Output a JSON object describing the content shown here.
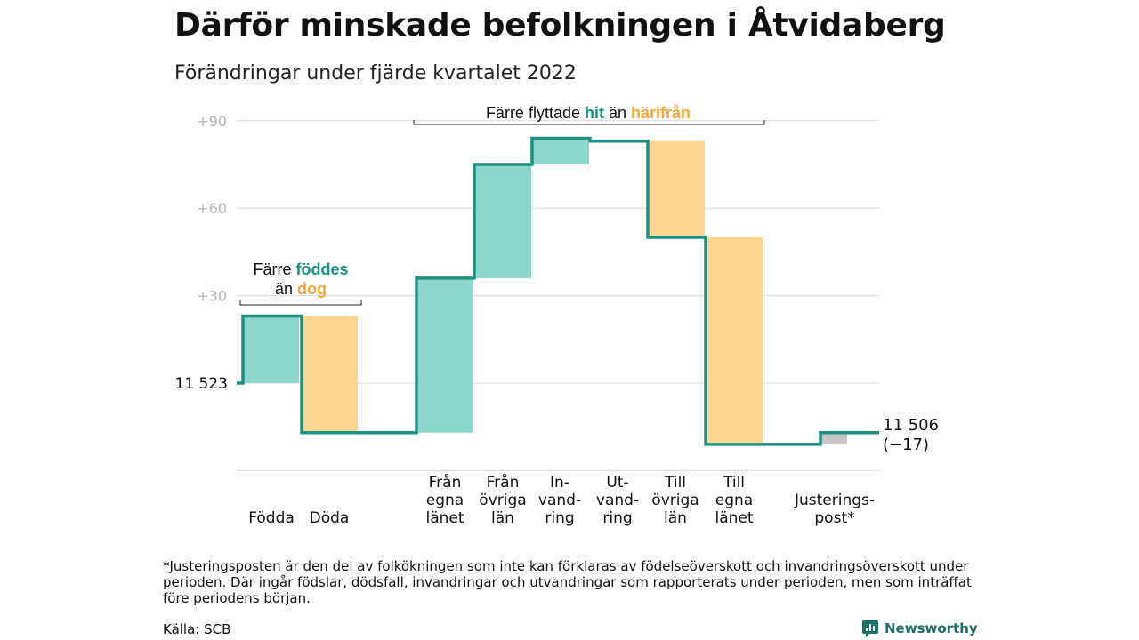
{
  "title": "Därför minskade befolkningen i Åtvidaberg",
  "subtitle": "Förändringar under fjärde kvartalet 2022",
  "footnote": "*Justeringsposten är den del av folkökningen som inte kan förklaras av födelseöverskott och invandringsöverskott under perioden. Där ingår födslar, dödsfall, invandringar och utvandringar som rapporterats under perioden, men som inträffat före periodens början.",
  "source": "Källa: SCB",
  "brand": "Newsworthy",
  "colors": {
    "increase": "#8dd6cb",
    "decrease": "#fcd690",
    "adjustment": "#c8c8c8",
    "line": "#1e9183",
    "teal_text": "#1e9183",
    "orange_text": "#f0a93a"
  },
  "chart_data": {
    "type": "waterfall",
    "start_value": 11523,
    "start_label": "11 523",
    "end_label": "11 506",
    "end_change_label": "(−17)",
    "y_ticks": [
      {
        "offset": 90,
        "label": "+90"
      },
      {
        "offset": 60,
        "label": "+60"
      },
      {
        "offset": 30,
        "label": "+30"
      },
      {
        "offset": 0,
        "label": ""
      },
      {
        "offset": -30,
        "label": ""
      }
    ],
    "ylim": [
      -40,
      95
    ],
    "steps": [
      {
        "label": [
          "",
          "",
          "Födda"
        ],
        "change": 23,
        "kind": "increase"
      },
      {
        "label": [
          "",
          "",
          "Döda"
        ],
        "change": -40,
        "kind": "decrease"
      },
      {
        "label": [
          "Från",
          "egna",
          "länet"
        ],
        "change": 53,
        "kind": "increase"
      },
      {
        "label": [
          "Från",
          "övriga",
          "län"
        ],
        "change": 39,
        "kind": "increase"
      },
      {
        "label": [
          "In-",
          "vand-",
          "ring"
        ],
        "change": 9,
        "kind": "increase"
      },
      {
        "label": [
          "Ut-",
          "vand-",
          "ring"
        ],
        "change": -1,
        "kind": "decrease_line_only"
      },
      {
        "label": [
          "Till",
          "övriga",
          "län"
        ],
        "change": -33,
        "kind": "decrease"
      },
      {
        "label": [
          "Till",
          "egna",
          "länet"
        ],
        "change": -71,
        "kind": "decrease"
      },
      {
        "label": [
          "Justerings-",
          "post*",
          ""
        ],
        "change": 4,
        "kind": "adjustment"
      }
    ],
    "annotations": [
      {
        "parts": [
          {
            "text": "Färre ",
            "color": "dark"
          },
          {
            "text": "föddes",
            "color": "teal"
          }
        ],
        "line2": [
          {
            "text": "än ",
            "color": "dark"
          },
          {
            "text": "dog",
            "color": "orange"
          }
        ]
      },
      {
        "parts": [
          {
            "text": "Färre flyttade ",
            "color": "dark"
          },
          {
            "text": "hit",
            "color": "teal"
          },
          {
            "text": " än ",
            "color": "dark"
          },
          {
            "text": "härifrån",
            "color": "orange"
          }
        ]
      }
    ]
  }
}
